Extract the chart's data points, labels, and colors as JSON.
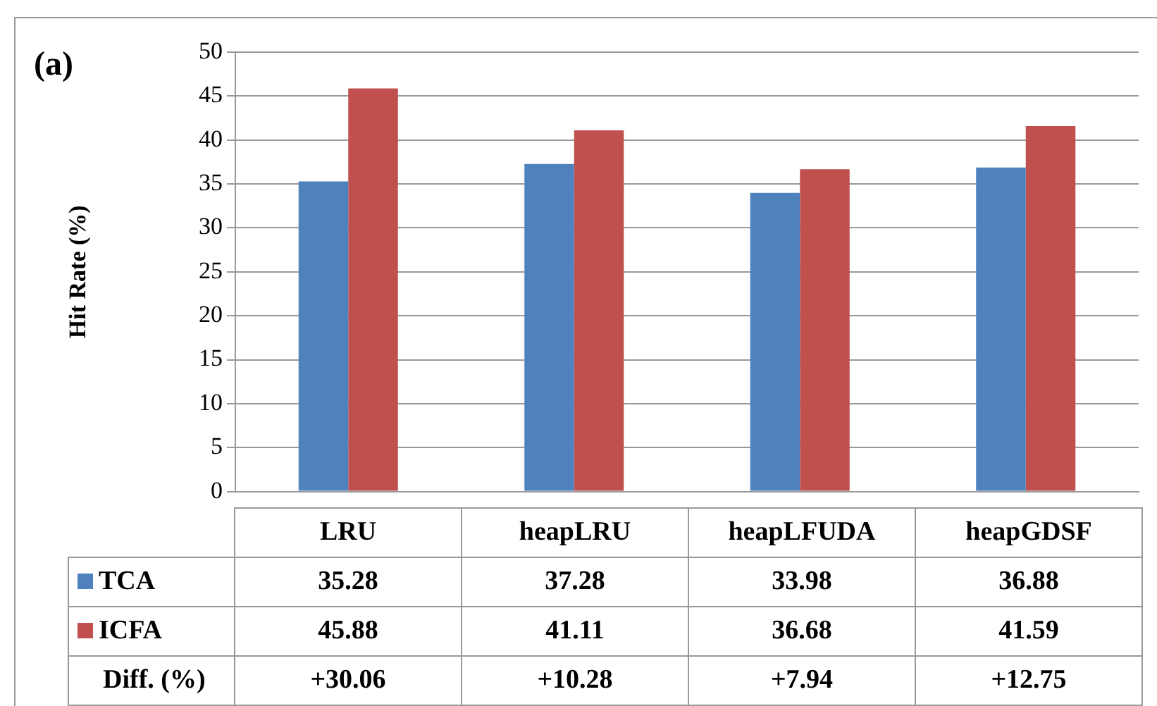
{
  "chart_data": {
    "type": "bar",
    "title": "(a)",
    "ylabel": "Hit Rate (%)",
    "categories": [
      "LRU",
      "heapLRU",
      "heapLFUDA",
      "heapGDSF"
    ],
    "series": [
      {
        "name": "TCA",
        "color": "#4f81bd",
        "values": [
          35.28,
          37.28,
          33.98,
          36.88
        ]
      },
      {
        "name": "ICFA",
        "color": "#c0504d",
        "values": [
          45.88,
          41.11,
          36.68,
          41.59
        ]
      }
    ],
    "ylim": [
      0,
      50
    ],
    "yticks": [
      0,
      5,
      10,
      15,
      20,
      25,
      30,
      35,
      40,
      45,
      50
    ],
    "grid": "y",
    "legend": "bottom left",
    "data_labels": true,
    "annotations": [
      "Diff. (%)",
      "+30.06",
      "+10.28",
      "+7.94",
      "+12.75"
    ]
  }
}
